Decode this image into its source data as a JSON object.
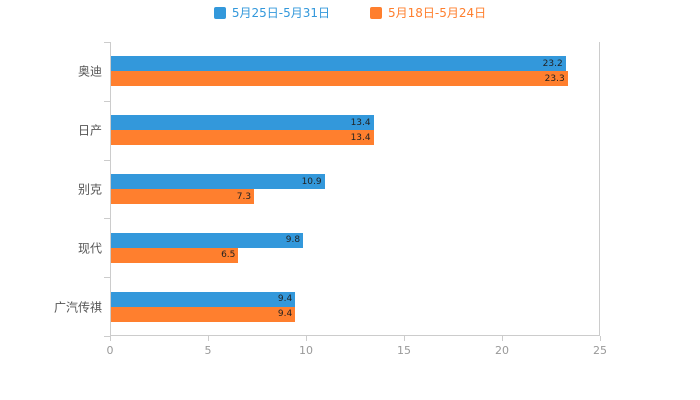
{
  "legend": {
    "items": [
      {
        "label": "5月25日-5月31日",
        "color": "#3398DB"
      },
      {
        "label": "5月18日-5月24日",
        "color": "#FF7F2E"
      }
    ]
  },
  "chart_data": {
    "type": "bar",
    "orientation": "horizontal",
    "title": "",
    "xlabel": "",
    "ylabel": "",
    "categories": [
      "奥迪",
      "日产",
      "别克",
      "现代",
      "广汽传祺"
    ],
    "series": [
      {
        "name": "5月25日-5月31日",
        "color": "#3398DB",
        "values": [
          23.2,
          13.4,
          10.9,
          9.8,
          9.4
        ]
      },
      {
        "name": "5月18日-5月24日",
        "color": "#FF7F2E",
        "values": [
          23.3,
          13.4,
          7.3,
          6.5,
          9.4
        ]
      }
    ],
    "xlim": [
      0,
      25
    ],
    "x_ticks": [
      0,
      5,
      10,
      15,
      20,
      25
    ],
    "legend_position": "top",
    "grid": false,
    "axis_color": "#cccccc",
    "tick_label_color": "#999999",
    "category_label_color": "#555555",
    "background": "#ffffff"
  }
}
